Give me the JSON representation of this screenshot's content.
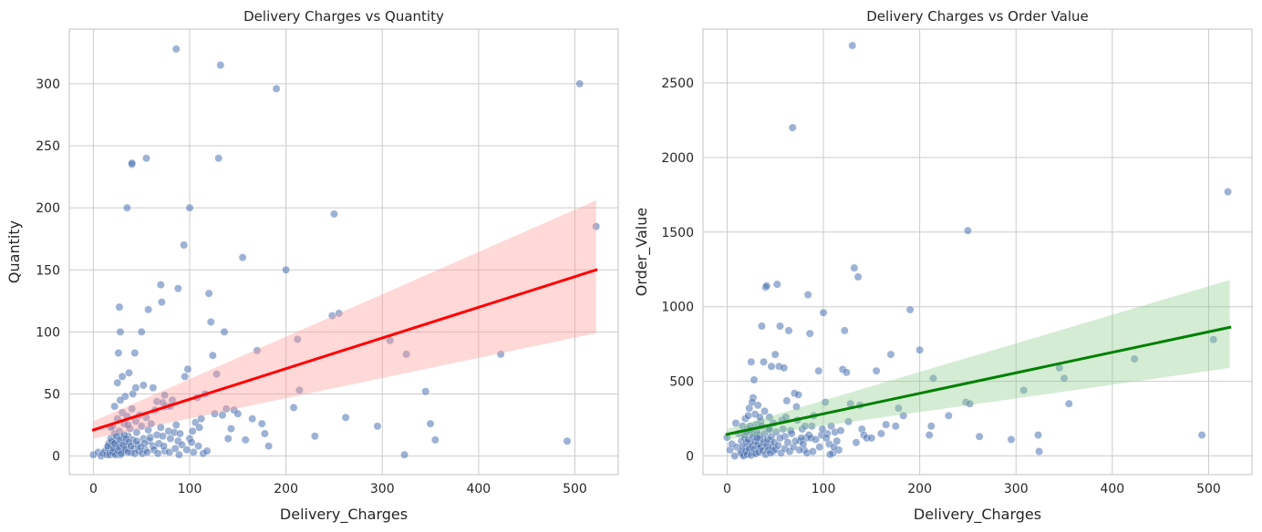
{
  "chart_data": [
    {
      "type": "scatter",
      "title": "Delivery Charges vs Quantity",
      "xlabel": "Delivery_Charges",
      "ylabel": "Quantity",
      "xlim": [
        -25,
        545
      ],
      "ylim": [
        -15,
        344
      ],
      "xticks": [
        0,
        100,
        200,
        300,
        400,
        500
      ],
      "yticks": [
        0,
        50,
        100,
        150,
        200,
        250,
        300
      ],
      "grid": true,
      "point_color": "#4c72b0",
      "line_color": "#ff0000",
      "band_color": "#ff9999",
      "regression": {
        "x": [
          0,
          522
        ],
        "y": [
          21,
          150
        ]
      },
      "ci_band": {
        "x": [
          0,
          522
        ],
        "lower": [
          14,
          99
        ],
        "upper": [
          28,
          206
        ]
      },
      "points": [
        [
          0,
          1
        ],
        [
          5,
          3
        ],
        [
          8,
          0
        ],
        [
          10,
          2
        ],
        [
          12,
          4
        ],
        [
          14,
          1
        ],
        [
          15,
          6
        ],
        [
          16,
          10
        ],
        [
          17,
          3
        ],
        [
          18,
          14
        ],
        [
          19,
          8
        ],
        [
          20,
          24
        ],
        [
          21,
          2
        ],
        [
          22,
          18
        ],
        [
          23,
          12
        ],
        [
          24,
          5
        ],
        [
          25,
          30
        ],
        [
          26,
          9
        ],
        [
          27,
          20
        ],
        [
          28,
          1
        ],
        [
          29,
          15
        ],
        [
          30,
          35
        ],
        [
          31,
          4
        ],
        [
          32,
          26
        ],
        [
          33,
          11
        ],
        [
          34,
          7
        ],
        [
          35,
          32
        ],
        [
          36,
          16
        ],
        [
          38,
          22
        ],
        [
          39,
          3
        ],
        [
          40,
          38
        ],
        [
          41,
          13
        ],
        [
          42,
          6
        ],
        [
          44,
          28
        ],
        [
          45,
          19
        ],
        [
          46,
          9
        ],
        [
          48,
          33
        ],
        [
          50,
          24
        ],
        [
          52,
          14
        ],
        [
          54,
          5
        ],
        [
          55,
          31
        ],
        [
          57,
          21
        ],
        [
          58,
          12
        ],
        [
          60,
          26
        ],
        [
          62,
          8
        ],
        [
          64,
          37
        ],
        [
          66,
          17
        ],
        [
          68,
          10
        ],
        [
          70,
          23
        ],
        [
          72,
          16
        ],
        [
          74,
          4
        ],
        [
          76,
          40
        ],
        [
          78,
          20
        ],
        [
          80,
          14
        ],
        [
          82,
          45
        ],
        [
          84,
          19
        ],
        [
          86,
          25
        ],
        [
          88,
          12
        ],
        [
          90,
          18
        ],
        [
          92,
          9
        ],
        [
          95,
          64
        ],
        [
          98,
          70
        ],
        [
          100,
          14
        ],
        [
          102,
          11
        ],
        [
          104,
          3
        ],
        [
          106,
          27
        ],
        [
          108,
          47
        ],
        [
          110,
          23
        ],
        [
          112,
          30
        ],
        [
          114,
          2
        ],
        [
          116,
          50
        ],
        [
          118,
          4
        ],
        [
          120,
          131
        ],
        [
          122,
          108
        ],
        [
          124,
          81
        ],
        [
          126,
          34
        ],
        [
          128,
          66
        ],
        [
          130,
          240
        ],
        [
          132,
          315
        ],
        [
          134,
          33
        ],
        [
          136,
          100
        ],
        [
          138,
          38
        ],
        [
          140,
          14
        ],
        [
          143,
          22
        ],
        [
          146,
          37
        ],
        [
          150,
          34
        ],
        [
          155,
          160
        ],
        [
          158,
          13
        ],
        [
          165,
          30
        ],
        [
          170,
          85
        ],
        [
          175,
          26
        ],
        [
          178,
          18
        ],
        [
          182,
          8
        ],
        [
          190,
          296
        ],
        [
          200,
          150
        ],
        [
          208,
          39
        ],
        [
          212,
          94
        ],
        [
          214,
          53
        ],
        [
          230,
          16
        ],
        [
          250,
          195
        ],
        [
          248,
          113
        ],
        [
          255,
          115
        ],
        [
          262,
          31
        ],
        [
          295,
          24
        ],
        [
          308,
          93
        ],
        [
          323,
          1
        ],
        [
          325,
          82
        ],
        [
          345,
          52
        ],
        [
          350,
          26
        ],
        [
          355,
          13
        ],
        [
          423,
          82
        ],
        [
          492,
          12
        ],
        [
          505,
          300
        ],
        [
          522,
          185
        ],
        [
          18,
          23
        ],
        [
          25,
          59
        ],
        [
          26,
          83
        ],
        [
          27,
          120
        ],
        [
          28,
          100
        ],
        [
          30,
          64
        ],
        [
          35,
          200
        ],
        [
          37,
          67
        ],
        [
          40,
          235
        ],
        [
          40,
          236
        ],
        [
          41,
          50
        ],
        [
          43,
          83
        ],
        [
          50,
          100
        ],
        [
          52,
          57
        ],
        [
          55,
          240
        ],
        [
          57,
          118
        ],
        [
          62,
          55
        ],
        [
          66,
          44
        ],
        [
          70,
          138
        ],
        [
          71,
          124
        ],
        [
          72,
          43
        ],
        [
          74,
          49
        ],
        [
          86,
          328
        ],
        [
          88,
          135
        ],
        [
          94,
          170
        ],
        [
          100,
          200
        ],
        [
          15,
          8
        ],
        [
          17,
          1
        ],
        [
          19,
          12
        ],
        [
          20,
          3
        ],
        [
          21,
          6
        ],
        [
          22,
          10
        ],
        [
          23,
          1
        ],
        [
          24,
          16
        ],
        [
          26,
          4
        ],
        [
          27,
          7
        ],
        [
          28,
          13
        ],
        [
          29,
          2
        ],
        [
          31,
          9
        ],
        [
          32,
          17
        ],
        [
          33,
          5
        ],
        [
          34,
          14
        ],
        [
          36,
          3
        ],
        [
          37,
          11
        ],
        [
          39,
          8
        ],
        [
          43,
          2
        ],
        [
          45,
          12
        ],
        [
          47,
          4
        ],
        [
          49,
          7
        ],
        [
          51,
          2
        ],
        [
          53,
          10
        ],
        [
          56,
          3
        ],
        [
          59,
          15
        ],
        [
          63,
          5
        ],
        [
          67,
          2
        ],
        [
          73,
          8
        ],
        [
          79,
          3
        ],
        [
          85,
          6
        ],
        [
          89,
          1
        ],
        [
          97,
          5
        ],
        [
          103,
          20
        ],
        [
          109,
          8
        ],
        [
          33,
          48
        ],
        [
          36,
          25
        ],
        [
          44,
          55
        ],
        [
          22,
          40
        ],
        [
          28,
          45
        ],
        [
          80,
          40
        ]
      ]
    },
    {
      "type": "scatter",
      "title": "Delivery Charges vs Order Value",
      "xlabel": "Delivery_Charges",
      "ylabel": "Order_Value",
      "xlim": [
        -25,
        545
      ],
      "ylim": [
        -125,
        2860
      ],
      "xticks": [
        0,
        100,
        200,
        300,
        400,
        500
      ],
      "yticks": [
        0,
        500,
        1000,
        1500,
        2000,
        2500
      ],
      "grid": true,
      "point_color": "#4c72b0",
      "line_color": "#008000",
      "band_color": "#8fcc8f",
      "regression": {
        "x": [
          0,
          522
        ],
        "y": [
          145,
          862
        ]
      },
      "ci_band": {
        "x": [
          0,
          522
        ],
        "lower": [
          110,
          590
        ],
        "upper": [
          180,
          1180
        ]
      },
      "points": [
        [
          0,
          125
        ],
        [
          3,
          40
        ],
        [
          5,
          80
        ],
        [
          8,
          0
        ],
        [
          9,
          220
        ],
        [
          10,
          60
        ],
        [
          12,
          150
        ],
        [
          14,
          30
        ],
        [
          15,
          100
        ],
        [
          16,
          200
        ],
        [
          17,
          10
        ],
        [
          18,
          120
        ],
        [
          19,
          250
        ],
        [
          20,
          60
        ],
        [
          21,
          180
        ],
        [
          22,
          40
        ],
        [
          23,
          320
        ],
        [
          24,
          90
        ],
        [
          25,
          630
        ],
        [
          26,
          150
        ],
        [
          27,
          390
        ],
        [
          28,
          20
        ],
        [
          29,
          280
        ],
        [
          30,
          210
        ],
        [
          31,
          70
        ],
        [
          32,
          340
        ],
        [
          33,
          140
        ],
        [
          34,
          50
        ],
        [
          35,
          230
        ],
        [
          36,
          870
        ],
        [
          37,
          110
        ],
        [
          38,
          630
        ],
        [
          39,
          300
        ],
        [
          40,
          1130
        ],
        [
          41,
          1140
        ],
        [
          42,
          60
        ],
        [
          43,
          180
        ],
        [
          44,
          260
        ],
        [
          45,
          100
        ],
        [
          46,
          600
        ],
        [
          48,
          30
        ],
        [
          50,
          680
        ],
        [
          52,
          1150
        ],
        [
          54,
          600
        ],
        [
          55,
          870
        ],
        [
          57,
          240
        ],
        [
          59,
          590
        ],
        [
          60,
          130
        ],
        [
          62,
          370
        ],
        [
          64,
          840
        ],
        [
          66,
          170
        ],
        [
          68,
          2200
        ],
        [
          70,
          420
        ],
        [
          72,
          330
        ],
        [
          74,
          410
        ],
        [
          76,
          100
        ],
        [
          78,
          180
        ],
        [
          80,
          40
        ],
        [
          82,
          120
        ],
        [
          84,
          1080
        ],
        [
          86,
          820
        ],
        [
          88,
          200
        ],
        [
          90,
          270
        ],
        [
          95,
          570
        ],
        [
          98,
          140
        ],
        [
          100,
          960
        ],
        [
          102,
          360
        ],
        [
          104,
          150
        ],
        [
          106,
          80
        ],
        [
          108,
          200
        ],
        [
          110,
          20
        ],
        [
          112,
          160
        ],
        [
          116,
          40
        ],
        [
          120,
          580
        ],
        [
          122,
          840
        ],
        [
          124,
          560
        ],
        [
          126,
          230
        ],
        [
          128,
          350
        ],
        [
          130,
          2750
        ],
        [
          132,
          1260
        ],
        [
          134,
          90
        ],
        [
          136,
          1200
        ],
        [
          138,
          340
        ],
        [
          140,
          180
        ],
        [
          142,
          140
        ],
        [
          145,
          120
        ],
        [
          150,
          120
        ],
        [
          155,
          570
        ],
        [
          160,
          150
        ],
        [
          165,
          210
        ],
        [
          170,
          680
        ],
        [
          175,
          200
        ],
        [
          178,
          320
        ],
        [
          183,
          270
        ],
        [
          190,
          980
        ],
        [
          200,
          710
        ],
        [
          210,
          140
        ],
        [
          212,
          200
        ],
        [
          214,
          520
        ],
        [
          230,
          270
        ],
        [
          248,
          360
        ],
        [
          250,
          1510
        ],
        [
          252,
          350
        ],
        [
          262,
          130
        ],
        [
          295,
          110
        ],
        [
          308,
          440
        ],
        [
          323,
          140
        ],
        [
          324,
          30
        ],
        [
          345,
          590
        ],
        [
          350,
          520
        ],
        [
          355,
          350
        ],
        [
          423,
          650
        ],
        [
          493,
          140
        ],
        [
          505,
          780
        ],
        [
          520,
          1770
        ],
        [
          15,
          20
        ],
        [
          16,
          60
        ],
        [
          17,
          0
        ],
        [
          18,
          140
        ],
        [
          19,
          30
        ],
        [
          20,
          90
        ],
        [
          21,
          10
        ],
        [
          22,
          110
        ],
        [
          23,
          50
        ],
        [
          24,
          170
        ],
        [
          25,
          5
        ],
        [
          26,
          70
        ],
        [
          27,
          130
        ],
        [
          28,
          45
        ],
        [
          29,
          100
        ],
        [
          30,
          15
        ],
        [
          31,
          160
        ],
        [
          32,
          80
        ],
        [
          33,
          25
        ],
        [
          34,
          120
        ],
        [
          35,
          60
        ],
        [
          36,
          200
        ],
        [
          37,
          35
        ],
        [
          38,
          90
        ],
        [
          39,
          150
        ],
        [
          40,
          10
        ],
        [
          41,
          70
        ],
        [
          42,
          110
        ],
        [
          43,
          40
        ],
        [
          44,
          180
        ],
        [
          45,
          20
        ],
        [
          46,
          130
        ],
        [
          47,
          60
        ],
        [
          48,
          220
        ],
        [
          49,
          90
        ],
        [
          50,
          45
        ],
        [
          51,
          160
        ],
        [
          53,
          70
        ],
        [
          55,
          120
        ],
        [
          56,
          20
        ],
        [
          58,
          180
        ],
        [
          60,
          50
        ],
        [
          61,
          260
        ],
        [
          63,
          90
        ],
        [
          65,
          30
        ],
        [
          67,
          150
        ],
        [
          69,
          60
        ],
        [
          71,
          100
        ],
        [
          73,
          240
        ],
        [
          75,
          40
        ],
        [
          77,
          120
        ],
        [
          79,
          80
        ],
        [
          81,
          200
        ],
        [
          83,
          20
        ],
        [
          85,
          140
        ],
        [
          87,
          120
        ],
        [
          89,
          30
        ],
        [
          92,
          110
        ],
        [
          96,
          60
        ],
        [
          99,
          180
        ],
        [
          103,
          120
        ],
        [
          107,
          10
        ],
        [
          111,
          60
        ],
        [
          114,
          100
        ],
        [
          118,
          170
        ],
        [
          22,
          270
        ],
        [
          26,
          360
        ],
        [
          28,
          510
        ],
        [
          31,
          120
        ],
        [
          34,
          260
        ],
        [
          24,
          200
        ],
        [
          20,
          160
        ]
      ]
    }
  ]
}
